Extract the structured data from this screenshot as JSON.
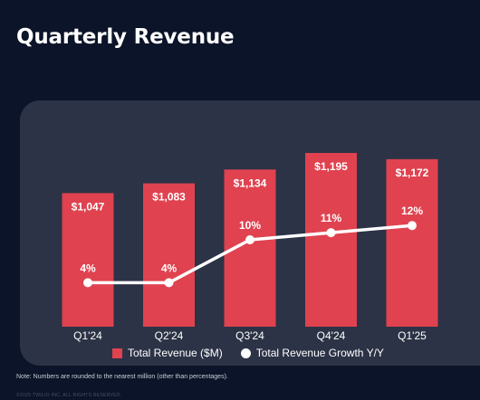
{
  "title": "Quarterly Revenue",
  "legend": {
    "bars": "Total Revenue ($M)",
    "line": "Total Revenue Growth Y/Y"
  },
  "note": "Note: Numbers are rounded to the nearest million (other than percentages).",
  "footer": "©2025 TWILIO INC. ALL RIGHTS RESERVED.",
  "colors": {
    "bar": "#e0424f",
    "line": "#ffffff",
    "panel": "#2c3346",
    "background": "#0b1428"
  },
  "chart_data": {
    "type": "bar",
    "categories": [
      "Q1'24",
      "Q2'24",
      "Q3'24",
      "Q4'24",
      "Q1'25"
    ],
    "series": [
      {
        "name": "Total Revenue ($M)",
        "type": "bar",
        "values": [
          1047,
          1083,
          1134,
          1195,
          1172
        ],
        "labels": [
          "$1,047",
          "$1,083",
          "$1,134",
          "$1,195",
          "$1,172"
        ]
      },
      {
        "name": "Total Revenue Growth Y/Y",
        "type": "line",
        "values": [
          4,
          4,
          10,
          11,
          12
        ],
        "labels": [
          "4%",
          "4%",
          "10%",
          "11%",
          "12%"
        ]
      }
    ]
  }
}
